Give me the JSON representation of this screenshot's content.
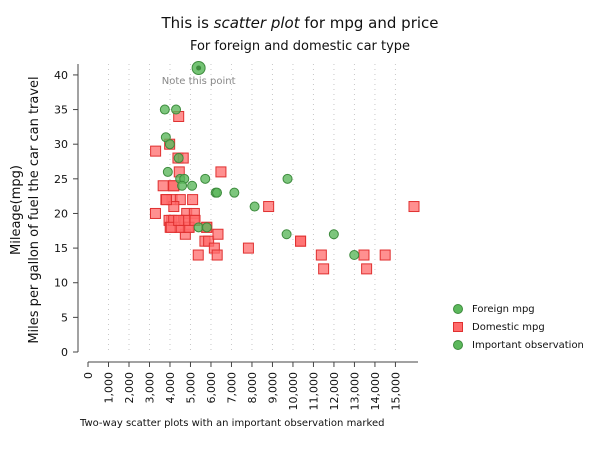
{
  "title": {
    "pre": "This is ",
    "emph": "scatter plot",
    "post": " for mpg and price"
  },
  "subtitle": "For foreign and domestic car type",
  "caption": "Two-way scatter plots with an important observation marked",
  "colors": {
    "foreign_fill": "#5cb85c",
    "foreign_stroke": "#3d8b3d",
    "domestic_fill": "#ff6b6b",
    "domestic_stroke": "#e03030",
    "important_fill": "#5cb85c",
    "axis": "#444444",
    "grid": "#c8c8c8",
    "note_text": "#888888"
  },
  "chart_data": {
    "type": "scatter",
    "ylabel": [
      "Mileage(mpg)",
      "Miles per gallon of fuel the car can travel"
    ],
    "xlim": [
      0,
      15906
    ],
    "ylim": [
      0,
      41
    ],
    "x_ticks": [
      0,
      1000,
      2000,
      3000,
      4000,
      5000,
      6000,
      7000,
      8000,
      9000,
      10000,
      11000,
      12000,
      13000,
      14000,
      15000
    ],
    "x_tick_labels": [
      "0",
      "1,000",
      "2,000",
      "3,000",
      "4,000",
      "5,000",
      "6,000",
      "7,000",
      "8,000",
      "9,000",
      "10,000",
      "11,000",
      "12,000",
      "13,000",
      "14,000",
      "15,000"
    ],
    "y_ticks": [
      0,
      5,
      10,
      15,
      20,
      25,
      30,
      35,
      40
    ],
    "vertical_grid": true,
    "legend_position": "right",
    "series": [
      {
        "name": "Foreign mpg",
        "marker": "circle",
        "points": [
          [
            3748,
            35
          ],
          [
            4296,
            35
          ],
          [
            3798,
            31
          ],
          [
            3895,
            26
          ],
          [
            4499,
            25
          ],
          [
            4697,
            25
          ],
          [
            5079,
            24
          ],
          [
            5719,
            25
          ],
          [
            6229,
            23
          ],
          [
            6295,
            23
          ],
          [
            7140,
            23
          ],
          [
            5397,
            18
          ],
          [
            8129,
            21
          ],
          [
            9690,
            17
          ],
          [
            9735,
            25
          ],
          [
            11995,
            17
          ],
          [
            12990,
            14
          ],
          [
            4425,
            28
          ],
          [
            3995,
            30
          ],
          [
            4589,
            24
          ],
          [
            5799,
            18
          ]
        ]
      },
      {
        "name": "Domestic mpg",
        "marker": "square",
        "points": [
          [
            4099,
            22
          ],
          [
            4749,
            17
          ],
          [
            3799,
            22
          ],
          [
            4816,
            20
          ],
          [
            7827,
            15
          ],
          [
            5788,
            18
          ],
          [
            4453,
            26
          ],
          [
            5189,
            20
          ],
          [
            10372,
            16
          ],
          [
            4082,
            19
          ],
          [
            11385,
            14
          ],
          [
            14500,
            14
          ],
          [
            15906,
            21
          ],
          [
            3299,
            29
          ],
          [
            5705,
            16
          ],
          [
            4504,
            22
          ],
          [
            5104,
            22
          ],
          [
            3667,
            24
          ],
          [
            3955,
            19
          ],
          [
            3984,
            30
          ],
          [
            4010,
            18
          ],
          [
            5886,
            16
          ],
          [
            6342,
            17
          ],
          [
            4389,
            28
          ],
          [
            4187,
            21
          ],
          [
            11497,
            12
          ],
          [
            13594,
            12
          ],
          [
            13466,
            14
          ],
          [
            3829,
            22
          ],
          [
            5379,
            14
          ],
          [
            6165,
            15
          ],
          [
            4516,
            18
          ],
          [
            6303,
            14
          ],
          [
            3291,
            20
          ],
          [
            8814,
            21
          ],
          [
            5172,
            19
          ],
          [
            4733,
            19
          ],
          [
            4890,
            18
          ],
          [
            4181,
            19
          ],
          [
            4195,
            24
          ],
          [
            10371,
            16
          ],
          [
            4647,
            28
          ],
          [
            4425,
            34
          ],
          [
            4482,
            18
          ],
          [
            6486,
            26
          ],
          [
            4060,
            18
          ],
          [
            5798,
            18
          ],
          [
            4934,
            18
          ],
          [
            5222,
            19
          ],
          [
            4723,
            19
          ],
          [
            4424,
            19
          ],
          [
            4172,
            24
          ]
        ]
      }
    ],
    "important": {
      "name": "Important observation",
      "marker": "circle",
      "x": 5397,
      "y": 41,
      "note": "Note this point"
    }
  }
}
